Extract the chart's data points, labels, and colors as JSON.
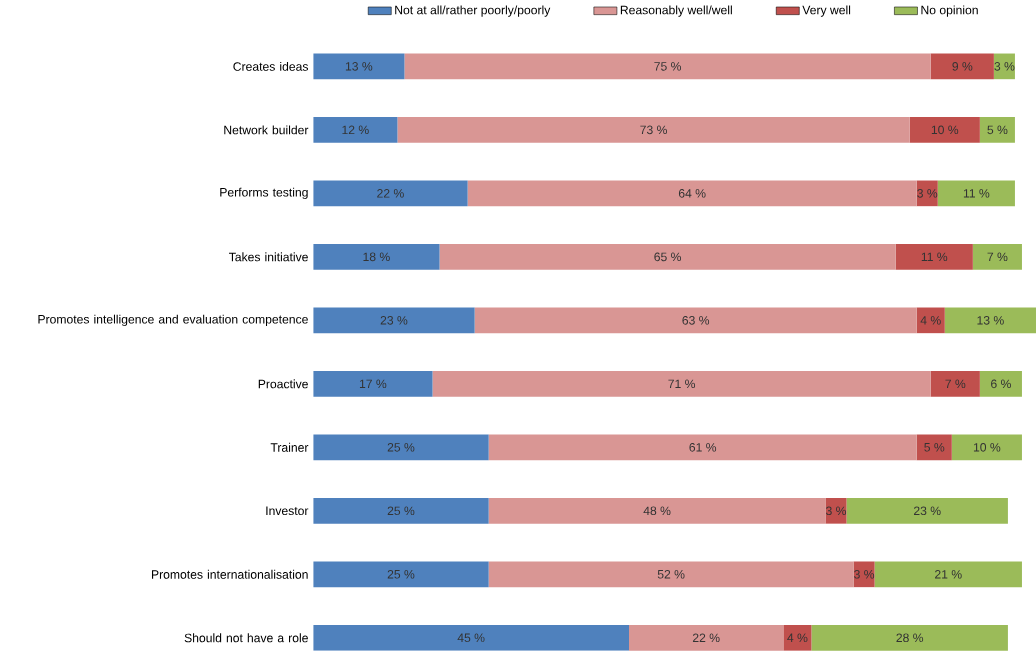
{
  "chart_data": {
    "type": "bar",
    "orientation": "horizontal",
    "stacked": true,
    "legend": "top",
    "tick_labels": "y",
    "categories": [
      "Creates ideas",
      "Network builder",
      "Performs testing",
      "Takes initiative",
      "Promotes intelligence and evaluation competence",
      "Proactive",
      "Trainer",
      "Investor",
      "Promotes internationalisation",
      "Should not have a role"
    ],
    "series": [
      {
        "name": "Not at all/rather poorly/poorly",
        "color": "#4f81bd",
        "values": [
          13,
          12,
          22,
          18,
          23,
          17,
          25,
          25,
          25,
          45
        ],
        "value_labels": [
          "13 %",
          "12 %",
          "22 %",
          "18 %",
          "23 %",
          "17 %",
          "25 %",
          "25 %",
          "25 %",
          "45 %"
        ]
      },
      {
        "name": "Reasonably well/well",
        "color": "#d99694",
        "values": [
          75,
          73,
          64,
          65,
          63,
          71,
          61,
          48,
          52,
          22
        ],
        "value_labels": [
          "75 %",
          "73 %",
          "64 %",
          "65 %",
          "63 %",
          "71 %",
          "61 %",
          "48 %",
          "52 %",
          "22 %"
        ]
      },
      {
        "name": "Very well",
        "color": "#c0504d",
        "values": [
          9,
          10,
          3,
          11,
          4,
          7,
          5,
          3,
          3,
          4
        ],
        "value_labels": [
          "9 %",
          "10 %",
          "3 %",
          "11 %",
          "4 %",
          "7 %",
          "5 %",
          "3 %",
          "3 %",
          "4 %"
        ]
      },
      {
        "name": "No opinion",
        "color": "#9bbb59",
        "values": [
          3,
          5,
          11,
          7,
          13,
          6,
          10,
          23,
          21,
          28
        ],
        "value_labels": [
          "3 %",
          "5 %",
          "11 %",
          "7 %",
          "13 %",
          "6 %",
          "10 %",
          "23 %",
          "21 %",
          "28 %"
        ]
      }
    ]
  }
}
